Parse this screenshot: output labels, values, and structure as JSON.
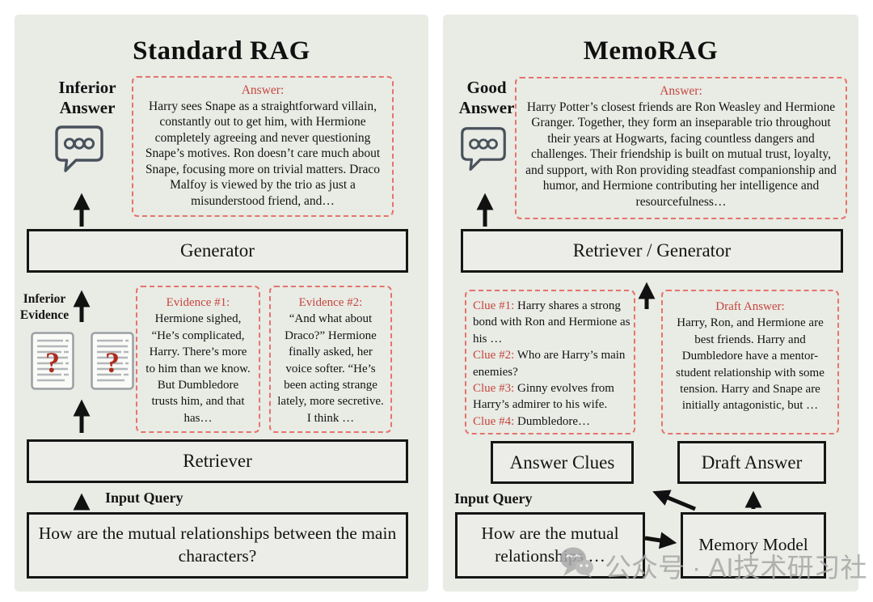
{
  "colors": {
    "panel_bg": "#e9ebe5",
    "accent_red": "#c5463d",
    "dashed_border": "#e5746c",
    "box_border": "#161616",
    "watermark_gray": "#a6a6a6"
  },
  "left_panel": {
    "title": "Standard RAG",
    "answer_label": "Inferior Answer",
    "answer_icon": "speech-bubble-icon",
    "answer_box": {
      "header": "Answer:",
      "body": "Harry sees Snape as a straightforward villain, constantly out to get him, with Hermione completely agreeing and never questioning Snape’s motives. Ron doesn’t care much about Snape, focusing more on trivial matters. Draco Malfoy is viewed by the trio as just a misunderstood friend, and…"
    },
    "generator_label": "Generator",
    "evidence_label": "Inferior Evidence",
    "evidence_icon": "document-question-icon",
    "evidence_boxes": [
      {
        "header": "Evidence #1:",
        "body": "Hermione sighed, “He’s complicated, Harry. There’s more to him than we know. But Dumbledore trusts him, and that has…"
      },
      {
        "header": "Evidence #2:",
        "body": "“And what about Draco?” Hermione finally asked, her voice softer. “He’s been acting strange lately, more secretive. I think …"
      }
    ],
    "retriever_label": "Retriever",
    "input_query_label": "Input Query",
    "query": "How are the mutual relationships between the main characters?"
  },
  "right_panel": {
    "title": "MemoRAG",
    "answer_label": "Good Answer",
    "answer_icon": "speech-bubble-icon",
    "answer_box": {
      "header": "Answer:",
      "body": "Harry Potter’s closest friends are Ron Weasley and Hermione Granger. Together, they form an inseparable trio throughout their years at Hogwarts, facing countless dangers and challenges. Their friendship is built on mutual trust, loyalty, and support, with Ron providing steadfast companionship and humor, and Hermione contributing her intelligence and resourcefulness…"
    },
    "retriever_generator_label": "Retriever / Generator",
    "clue_box": {
      "clues": [
        {
          "label": "Clue #1:",
          "text": "Harry shares a strong bond with Ron and Hermione as his …"
        },
        {
          "label": "Clue #2:",
          "text": "Who are Harry’s main enemies?"
        },
        {
          "label": "Clue #3:",
          "text": "Ginny evolves from Harry’s admirer to his wife."
        },
        {
          "label": "Clue #4:",
          "text": "Dumbledore…"
        }
      ]
    },
    "draft_box": {
      "header": "Draft Answer:",
      "body": "Harry, Ron, and Hermione are best friends. Harry and Dumbledore have a mentor-student relationship with some tension. Harry and Snape are initially antagonistic, but …"
    },
    "answer_clues_label": "Answer Clues",
    "draft_answer_label": "Draft Answer",
    "input_query_label": "Input Query",
    "query": "How are the mutual relationships …",
    "memory_model_label": "Memory Model"
  },
  "watermark": {
    "logo_icon": "speech-bubbles-logo-icon",
    "text": "公众号 · AI技术研习社"
  }
}
